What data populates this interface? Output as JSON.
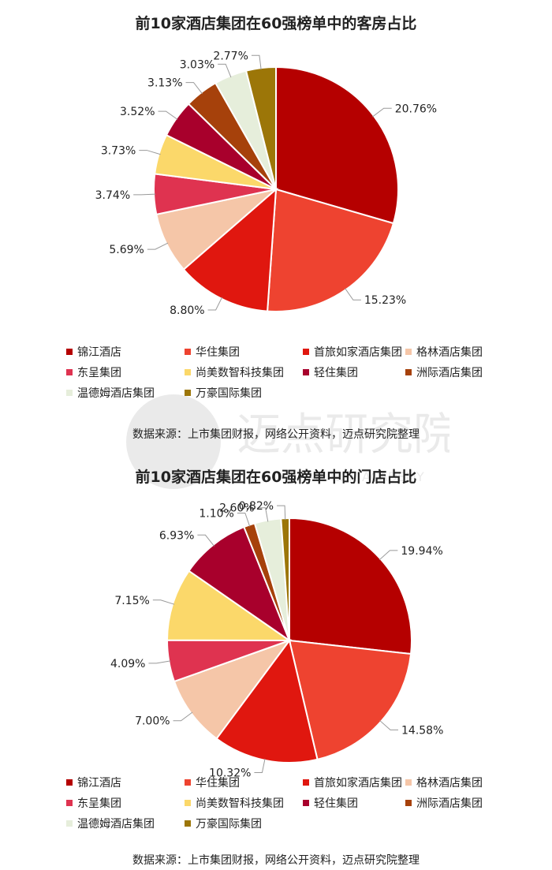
{
  "legend_labels": [
    "锦江酒店",
    "华住集团",
    "首旅如家酒店集团",
    "格林酒店集团",
    "东呈集团",
    "尚美数智科技集团",
    "轻住集团",
    "洲际酒店集团",
    "温德姆酒店集团",
    "万豪国际集团"
  ],
  "colors": [
    "#b50000",
    "#ee4330",
    "#e0170f",
    "#f5c6a8",
    "#df3350",
    "#fbd86a",
    "#a8002c",
    "#a6410b",
    "#e6eedb",
    "#9c7608"
  ],
  "watermark": {
    "brand": "迈点研究院",
    "latin": "MEADIN ACADEMY"
  },
  "chart_data": [
    {
      "type": "pie",
      "title": "前10家酒店集团在60强榜单中的客房占比",
      "categories": [
        "锦江酒店",
        "华住集团",
        "首旅如家酒店集团",
        "格林酒店集团",
        "东呈集团",
        "尚美数智科技集团",
        "轻住集团",
        "洲际酒店集团",
        "温德姆酒店集团",
        "万豪国际集团"
      ],
      "values": [
        20.76,
        15.23,
        8.8,
        5.69,
        3.74,
        3.73,
        3.52,
        3.13,
        3.03,
        2.77
      ],
      "labels": [
        "20.76%",
        "15.23%",
        "8.80%",
        "5.69%",
        "3.74%",
        "3.73%",
        "3.52%",
        "3.13%",
        "3.03%",
        "2.77%"
      ],
      "legend_position": "bottom",
      "source": "数据来源：上市集团财报，网络公开资料，迈点研究院整理"
    },
    {
      "type": "pie",
      "title": "前10家酒店集团在60强榜单中的门店占比",
      "categories": [
        "锦江酒店",
        "华住集团",
        "首旅如家酒店集团",
        "格林酒店集团",
        "东呈集团",
        "尚美数智科技集团",
        "轻住集团",
        "洲际酒店集团",
        "温德姆酒店集团",
        "万豪国际集团"
      ],
      "values": [
        19.94,
        14.58,
        10.32,
        7.0,
        4.09,
        7.15,
        6.93,
        1.1,
        2.6,
        0.82
      ],
      "labels": [
        "19.94%",
        "14.58%",
        "10.32%",
        "7.00%",
        "4.09%",
        "7.15%",
        "6.93%",
        "1.10%",
        "2.60%",
        "0.82%"
      ],
      "legend_position": "bottom",
      "source": "数据来源：上市集团财报，网络公开资料，迈点研究院整理"
    }
  ]
}
